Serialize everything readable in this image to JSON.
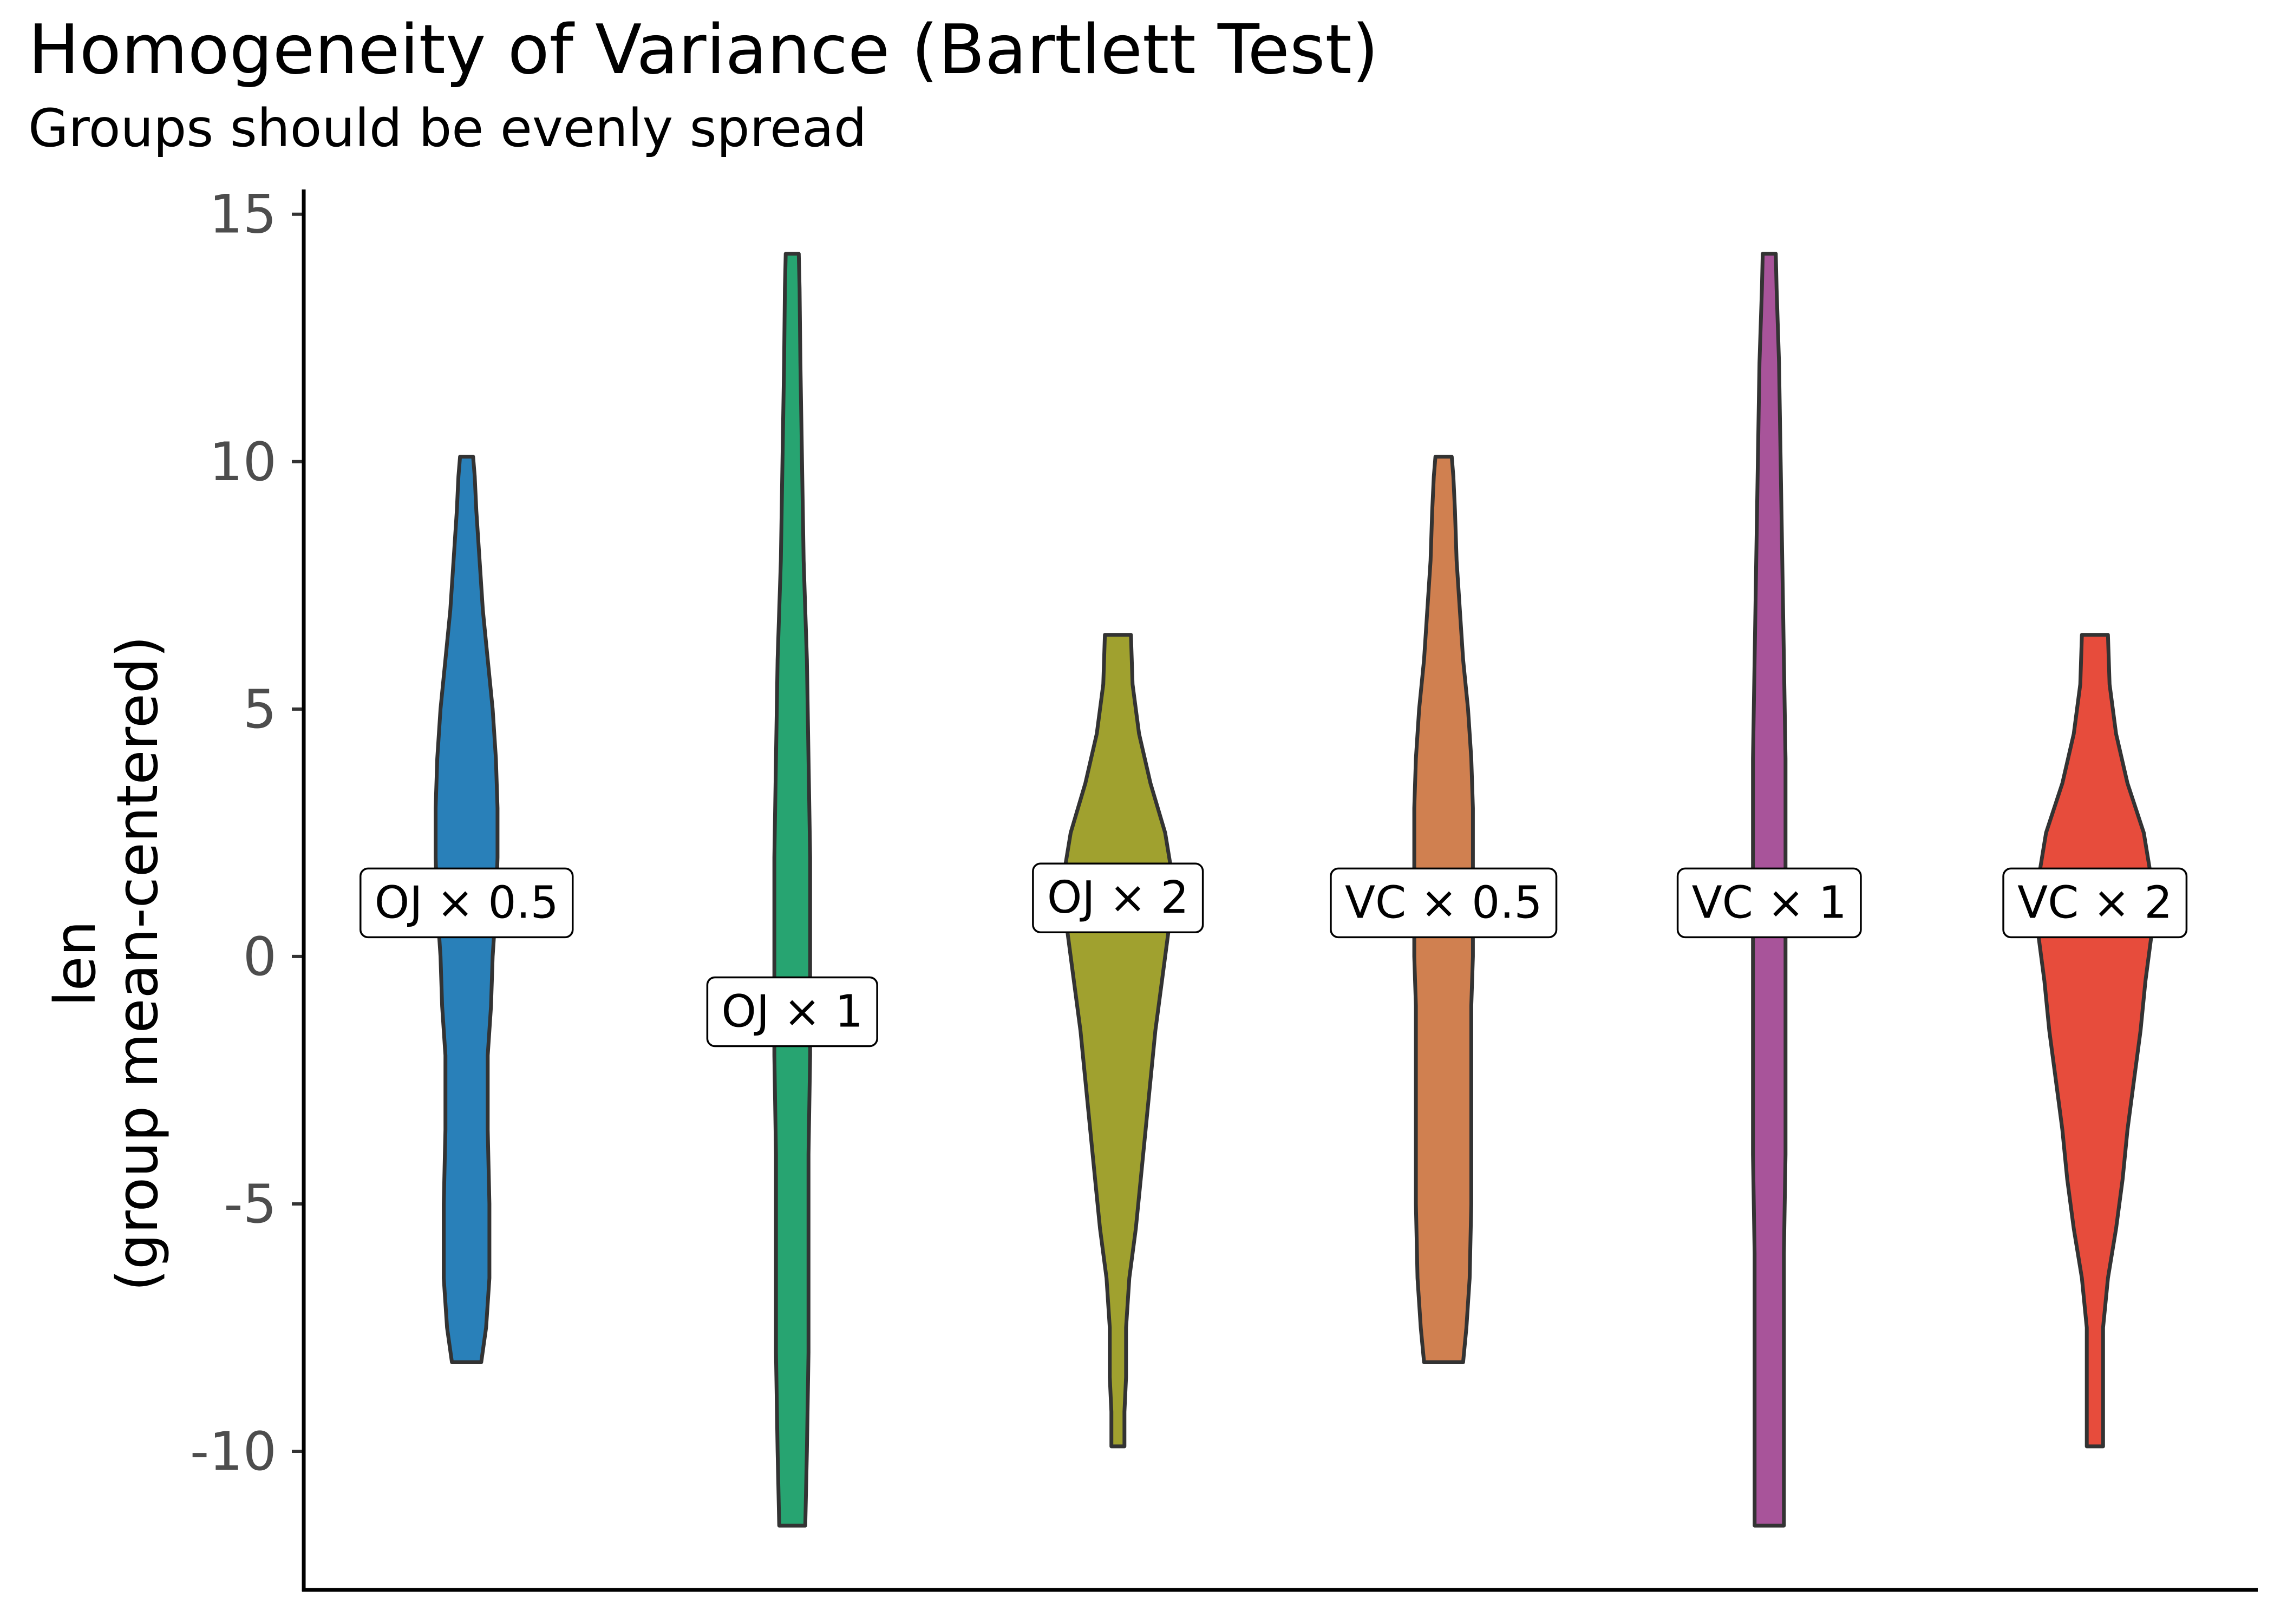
{
  "chart_data": {
    "type": "violin",
    "title": "Homogeneity of Variance (Bartlett Test)",
    "subtitle": "Groups should be evenly spread",
    "xlabel": "",
    "ylabel_lines": [
      "len",
      "(group mean-centered)"
    ],
    "ylim": [
      -12.8,
      15.5
    ],
    "yticks": [
      15,
      10,
      5,
      0,
      -5,
      -10
    ],
    "ytick_labels": [
      "15",
      "10",
      "5",
      "0",
      "-5",
      "-10"
    ],
    "grid": false,
    "legend": "none",
    "groups": [
      {
        "label": "OJ × 0.5",
        "color": "#2980b9",
        "label_y": 1.1,
        "profile": [
          [
            -8.2,
            0.09
          ],
          [
            -7.5,
            0.12
          ],
          [
            -6.5,
            0.14
          ],
          [
            -5,
            0.14
          ],
          [
            -3.5,
            0.13
          ],
          [
            -2,
            0.13
          ],
          [
            -1,
            0.15
          ],
          [
            0,
            0.16
          ],
          [
            1,
            0.18
          ],
          [
            2,
            0.19
          ],
          [
            3,
            0.19
          ],
          [
            4,
            0.18
          ],
          [
            5,
            0.16
          ],
          [
            6,
            0.13
          ],
          [
            7,
            0.1
          ],
          [
            8,
            0.08
          ],
          [
            9,
            0.06
          ],
          [
            9.7,
            0.05
          ],
          [
            10.1,
            0.04
          ]
        ]
      },
      {
        "label": "OJ × 1",
        "color": "#27a471",
        "label_y": -1.1,
        "profile": [
          [
            -11.5,
            0.08
          ],
          [
            -10,
            0.09
          ],
          [
            -8,
            0.1
          ],
          [
            -6,
            0.1
          ],
          [
            -4,
            0.1
          ],
          [
            -2,
            0.11
          ],
          [
            0,
            0.11
          ],
          [
            2,
            0.11
          ],
          [
            4,
            0.1
          ],
          [
            6,
            0.09
          ],
          [
            8,
            0.07
          ],
          [
            10,
            0.06
          ],
          [
            12,
            0.05
          ],
          [
            13.5,
            0.045
          ],
          [
            14.2,
            0.04
          ]
        ]
      },
      {
        "label": "OJ × 2",
        "color": "#a0a12f",
        "label_y": 1.2,
        "profile": [
          [
            -9.9,
            0.04
          ],
          [
            -9.2,
            0.04
          ],
          [
            -8.5,
            0.05
          ],
          [
            -7.5,
            0.05
          ],
          [
            -6.5,
            0.07
          ],
          [
            -5.5,
            0.11
          ],
          [
            -4.5,
            0.14
          ],
          [
            -3.5,
            0.17
          ],
          [
            -2.5,
            0.2
          ],
          [
            -1.5,
            0.23
          ],
          [
            -0.5,
            0.27
          ],
          [
            0.5,
            0.31
          ],
          [
            1.5,
            0.34
          ],
          [
            2.5,
            0.29
          ],
          [
            3.5,
            0.2
          ],
          [
            4.5,
            0.13
          ],
          [
            5.5,
            0.09
          ],
          [
            6.5,
            0.08
          ]
        ]
      },
      {
        "label": "VC × 0.5",
        "color": "#d08050",
        "label_y": 1.1,
        "profile": [
          [
            -8.2,
            0.12
          ],
          [
            -7.5,
            0.14
          ],
          [
            -6.5,
            0.16
          ],
          [
            -5,
            0.17
          ],
          [
            -3.5,
            0.17
          ],
          [
            -2,
            0.17
          ],
          [
            -1,
            0.17
          ],
          [
            0,
            0.18
          ],
          [
            1,
            0.18
          ],
          [
            2,
            0.18
          ],
          [
            3,
            0.18
          ],
          [
            4,
            0.17
          ],
          [
            5,
            0.15
          ],
          [
            6,
            0.12
          ],
          [
            7,
            0.1
          ],
          [
            8,
            0.08
          ],
          [
            9,
            0.07
          ],
          [
            9.7,
            0.06
          ],
          [
            10.1,
            0.05
          ]
        ]
      },
      {
        "label": "VC × 1",
        "color": "#a8549a",
        "label_y": 1.1,
        "profile": [
          [
            -11.5,
            0.09
          ],
          [
            -10,
            0.09
          ],
          [
            -8,
            0.09
          ],
          [
            -6,
            0.09
          ],
          [
            -4,
            0.1
          ],
          [
            -2,
            0.1
          ],
          [
            0,
            0.1
          ],
          [
            2,
            0.1
          ],
          [
            4,
            0.1
          ],
          [
            6,
            0.09
          ],
          [
            8,
            0.08
          ],
          [
            10,
            0.07
          ],
          [
            12,
            0.06
          ],
          [
            13.5,
            0.045
          ],
          [
            14.2,
            0.04
          ]
        ]
      },
      {
        "label": "VC × 2",
        "color": "#e74c3c",
        "label_y": 1.1,
        "profile": [
          [
            -9.9,
            0.05
          ],
          [
            -9.2,
            0.05
          ],
          [
            -8.5,
            0.05
          ],
          [
            -7.5,
            0.05
          ],
          [
            -6.5,
            0.08
          ],
          [
            -5.5,
            0.13
          ],
          [
            -4.5,
            0.17
          ],
          [
            -3.5,
            0.2
          ],
          [
            -2.5,
            0.24
          ],
          [
            -1.5,
            0.28
          ],
          [
            -0.5,
            0.31
          ],
          [
            0.5,
            0.35
          ],
          [
            1.5,
            0.35
          ],
          [
            2.5,
            0.3
          ],
          [
            3.5,
            0.2
          ],
          [
            4.5,
            0.13
          ],
          [
            5.5,
            0.09
          ],
          [
            6.5,
            0.08
          ]
        ]
      }
    ]
  }
}
